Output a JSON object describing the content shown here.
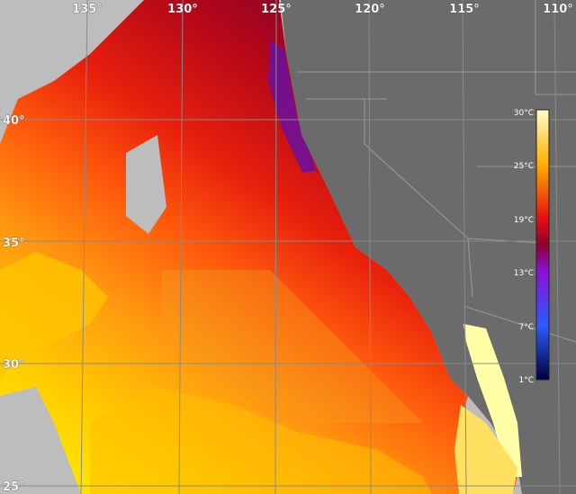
{
  "map": {
    "longitude_labels": [
      "135°",
      "130°",
      "125°",
      "120°",
      "115°",
      "110°"
    ],
    "latitude_labels": [
      "40°",
      "35°",
      "30°",
      "25°"
    ],
    "colorbar_labels": [
      "30°C",
      "25°C",
      "19°C",
      "13°C",
      "7°C",
      "1°C"
    ]
  }
}
